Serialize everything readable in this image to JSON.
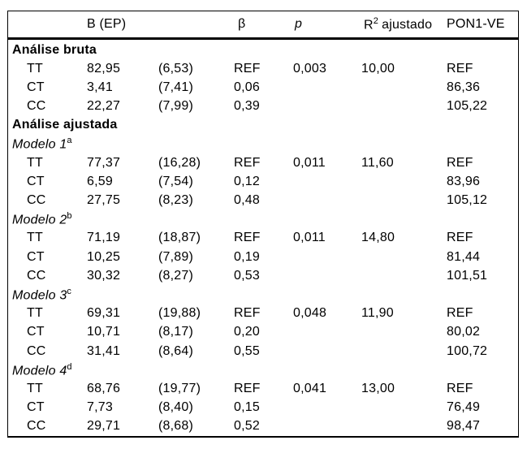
{
  "colors": {
    "background": "#ffffff",
    "text": "#000000",
    "rule": "#000000"
  },
  "table": {
    "header": {
      "b_ep": "B (EP)",
      "beta": "β",
      "p": "p",
      "r2_base": "R",
      "r2_sup": "2",
      "r2_rest": "ajustado",
      "pon1": "PON1-VE"
    },
    "rows": [
      {
        "type": "section-bold",
        "label": "Análise bruta"
      },
      {
        "type": "data",
        "label": "TT",
        "b": "82,95",
        "ep": "(6,53)",
        "beta": "REF",
        "p": "0,003",
        "r2": "10,00",
        "pon1": "REF"
      },
      {
        "type": "data",
        "label": "CT",
        "b": "3,41",
        "ep": "(7,41)",
        "beta": "0,06",
        "p": "",
        "r2": "",
        "pon1": "86,36"
      },
      {
        "type": "data",
        "label": "CC",
        "b": "22,27",
        "ep": "(7,99)",
        "beta": "0,39",
        "p": "",
        "r2": "",
        "pon1": "105,22"
      },
      {
        "type": "section-bold",
        "label": "Análise ajustada"
      },
      {
        "type": "section-italic",
        "label": "Modelo 1",
        "sup": "a"
      },
      {
        "type": "data",
        "label": "TT",
        "b": "77,37",
        "ep": "(16,28)",
        "beta": "REF",
        "p": "0,011",
        "r2": "11,60",
        "pon1": "REF"
      },
      {
        "type": "data",
        "label": "CT",
        "b": "6,59",
        "ep": "(7,54)",
        "beta": "0,12",
        "p": "",
        "r2": "",
        "pon1": "83,96"
      },
      {
        "type": "data",
        "label": "CC",
        "b": "27,75",
        "ep": "(8,23)",
        "beta": "0,48",
        "p": "",
        "r2": "",
        "pon1": "105,12"
      },
      {
        "type": "section-italic",
        "label": "Modelo 2",
        "sup": "b"
      },
      {
        "type": "data",
        "label": "TT",
        "b": "71,19",
        "ep": "(18,87)",
        "beta": "REF",
        "p": "0,011",
        "r2": "14,80",
        "pon1": "REF"
      },
      {
        "type": "data",
        "label": "CT",
        "b": "10,25",
        "ep": "(7,89)",
        "beta": "0,19",
        "p": "",
        "r2": "",
        "pon1": "81,44"
      },
      {
        "type": "data",
        "label": "CC",
        "b": "30,32",
        "ep": "(8,27)",
        "beta": "0,53",
        "p": "",
        "r2": "",
        "pon1": "101,51"
      },
      {
        "type": "section-italic",
        "label": "Modelo 3",
        "sup": "c"
      },
      {
        "type": "data",
        "label": "TT",
        "b": "69,31",
        "ep": "(19,88)",
        "beta": "REF",
        "p": "0,048",
        "r2": "11,90",
        "pon1": "REF"
      },
      {
        "type": "data",
        "label": "CT",
        "b": "10,71",
        "ep": "(8,17)",
        "beta": "0,20",
        "p": "",
        "r2": "",
        "pon1": "80,02"
      },
      {
        "type": "data",
        "label": "CC",
        "b": "31,41",
        "ep": "(8,64)",
        "beta": "0,55",
        "p": "",
        "r2": "",
        "pon1": "100,72"
      },
      {
        "type": "section-italic",
        "label": "Modelo 4",
        "sup": "d"
      },
      {
        "type": "data",
        "label": "TT",
        "b": "68,76",
        "ep": "(19,77)",
        "beta": "REF",
        "p": "0,041",
        "r2": "13,00",
        "pon1": "REF"
      },
      {
        "type": "data",
        "label": "CT",
        "b": "7,73",
        "ep": "(8,40)",
        "beta": "0,15",
        "p": "",
        "r2": "",
        "pon1": "76,49"
      },
      {
        "type": "data",
        "label": "CC",
        "b": "29,71",
        "ep": "(8,68)",
        "beta": "0,52",
        "p": "",
        "r2": "",
        "pon1": "98,47"
      }
    ]
  }
}
